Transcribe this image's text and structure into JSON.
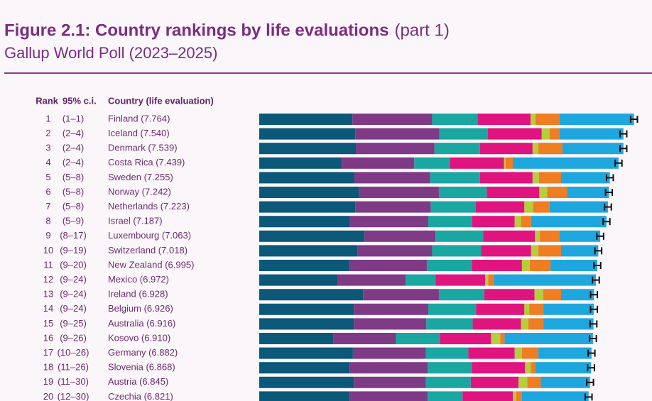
{
  "chart_data": {
    "type": "stacked-bar-horizontal",
    "title": "Figure 2.1: Country rankings by life evaluations",
    "title_part": "(part 1)",
    "subtitle": "Gallup World Poll (2023–2025)",
    "columns": [
      "Rank",
      "95% c.i.",
      "Country (life evaluation)"
    ],
    "ranks": [
      1,
      2,
      3,
      4,
      5,
      6,
      7,
      8,
      9,
      10,
      11,
      12,
      13,
      14,
      15,
      16,
      17,
      18,
      19,
      20
    ],
    "ci": [
      "(1–1)",
      "(2–4)",
      "(2–4)",
      "(2–4)",
      "(5–8)",
      "(5–8)",
      "(5–8)",
      "(5–9)",
      "(8–17)",
      "(9–19)",
      "(9–20)",
      "(9–24)",
      "(9–24)",
      "(9–24)",
      "(9–25)",
      "(9–26)",
      "(10–26)",
      "(11–26)",
      "(11–30)",
      "(12–30)"
    ],
    "categories": [
      "Finland (7.764)",
      "Iceland (7.540)",
      "Denmark (7.539)",
      "Costa Rica (7.439)",
      "Sweden (7.255)",
      "Norway (7.242)",
      "Netherlands (7.223)",
      "Israel (7.187)",
      "Luxembourg (7.063)",
      "Switzerland (7.018)",
      "New Zealand (6.995)",
      "Mexico (6.972)",
      "Ireland (6.928)",
      "Belgium (6.926)",
      "Australia (6.916)",
      "Kosovo (6.910)",
      "Germany (6.882)",
      "Slovenia (6.868)",
      "Austria (6.845)",
      "Czechia (6.821)"
    ],
    "series": [
      {
        "color": "#0b5878",
        "values": [
          1.93,
          1.99,
          2.0,
          1.71,
          1.97,
          2.07,
          1.99,
          1.88,
          2.18,
          2.04,
          1.87,
          1.63,
          2.15,
          1.96,
          1.96,
          1.54,
          1.94,
          1.87,
          1.96,
          1.87
        ]
      },
      {
        "color": "#7f3a85",
        "values": [
          1.65,
          1.74,
          1.63,
          1.5,
          1.57,
          1.65,
          1.56,
          1.62,
          1.47,
          1.54,
          1.6,
          1.4,
          1.57,
          1.54,
          1.5,
          1.29,
          1.51,
          1.62,
          1.49,
          1.62
        ]
      },
      {
        "color": "#1aa7a1",
        "values": [
          0.94,
          1.0,
          0.94,
          0.74,
          1.03,
          0.99,
          0.93,
          0.91,
          0.99,
          1.01,
          0.93,
          0.62,
          0.94,
          0.99,
          0.96,
          0.91,
          0.88,
          0.91,
          0.93,
          0.72
        ]
      },
      {
        "color": "#e0147f",
        "values": [
          1.1,
          1.12,
          1.09,
          1.12,
          1.09,
          1.09,
          1.01,
          0.88,
          1.07,
          1.04,
          1.04,
          1.03,
          1.04,
          1.0,
          1.0,
          1.06,
          0.96,
          1.1,
          0.99,
          1.04
        ]
      },
      {
        "color": "#b5cf3a",
        "values": [
          0.1,
          0.16,
          0.12,
          0.03,
          0.13,
          0.16,
          0.18,
          0.13,
          0.1,
          0.15,
          0.16,
          0.06,
          0.18,
          0.1,
          0.15,
          0.19,
          0.15,
          0.12,
          0.18,
          0.07
        ]
      },
      {
        "color": "#ef7d22",
        "values": [
          0.5,
          0.21,
          0.5,
          0.15,
          0.46,
          0.41,
          0.34,
          0.21,
          0.4,
          0.47,
          0.43,
          0.12,
          0.37,
          0.29,
          0.31,
          0.09,
          0.34,
          0.1,
          0.28,
          0.12
        ]
      },
      {
        "color": "#1ea7de",
        "values": [
          1.54,
          1.32,
          1.26,
          2.19,
          1.01,
          0.87,
          1.21,
          1.56,
          0.85,
          0.77,
          0.97,
          2.11,
          0.68,
          1.05,
          1.04,
          1.83,
          1.1,
          1.15,
          1.02,
          1.38
        ]
      }
    ],
    "errors": [
      0.07,
      0.07,
      0.07,
      0.07,
      0.07,
      0.07,
      0.07,
      0.07,
      0.07,
      0.07,
      0.07,
      0.07,
      0.07,
      0.07,
      0.07,
      0.07,
      0.07,
      0.07,
      0.07,
      0.07
    ],
    "xlim": [
      0,
      8
    ]
  }
}
